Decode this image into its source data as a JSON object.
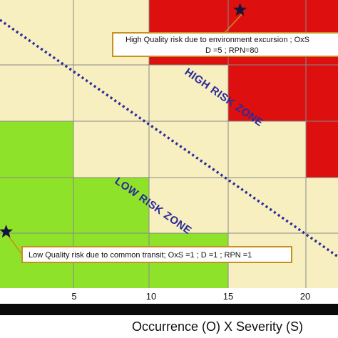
{
  "chart_data": {
    "type": "heatmap",
    "xlabel": "Occurrence (O) X Severity (S)",
    "x_ticks": [
      5,
      10,
      15,
      20
    ],
    "colors": {
      "low": "#8fe22a",
      "medium": "#f7efc0",
      "high": "#dd0f0f",
      "grid": "#888888",
      "zone_line": "#2a2a9a",
      "star": "#15153a"
    },
    "zone_labels": {
      "high": "HIGH RISK ZONE",
      "low": "LOW RISK ZONE"
    },
    "annotations": [
      {
        "lines": [
          "High Quality risk due to environment  excursion ; OxS",
          "D =5 ; RPN=80"
        ],
        "point": {
          "oxs": 16,
          "d": 5
        }
      },
      {
        "lines": [
          "Low Quality risk due to common transit; OxS =1 ; D =1 ; RPN =1"
        ],
        "point": {
          "oxs": 1,
          "d": 1
        }
      }
    ]
  }
}
